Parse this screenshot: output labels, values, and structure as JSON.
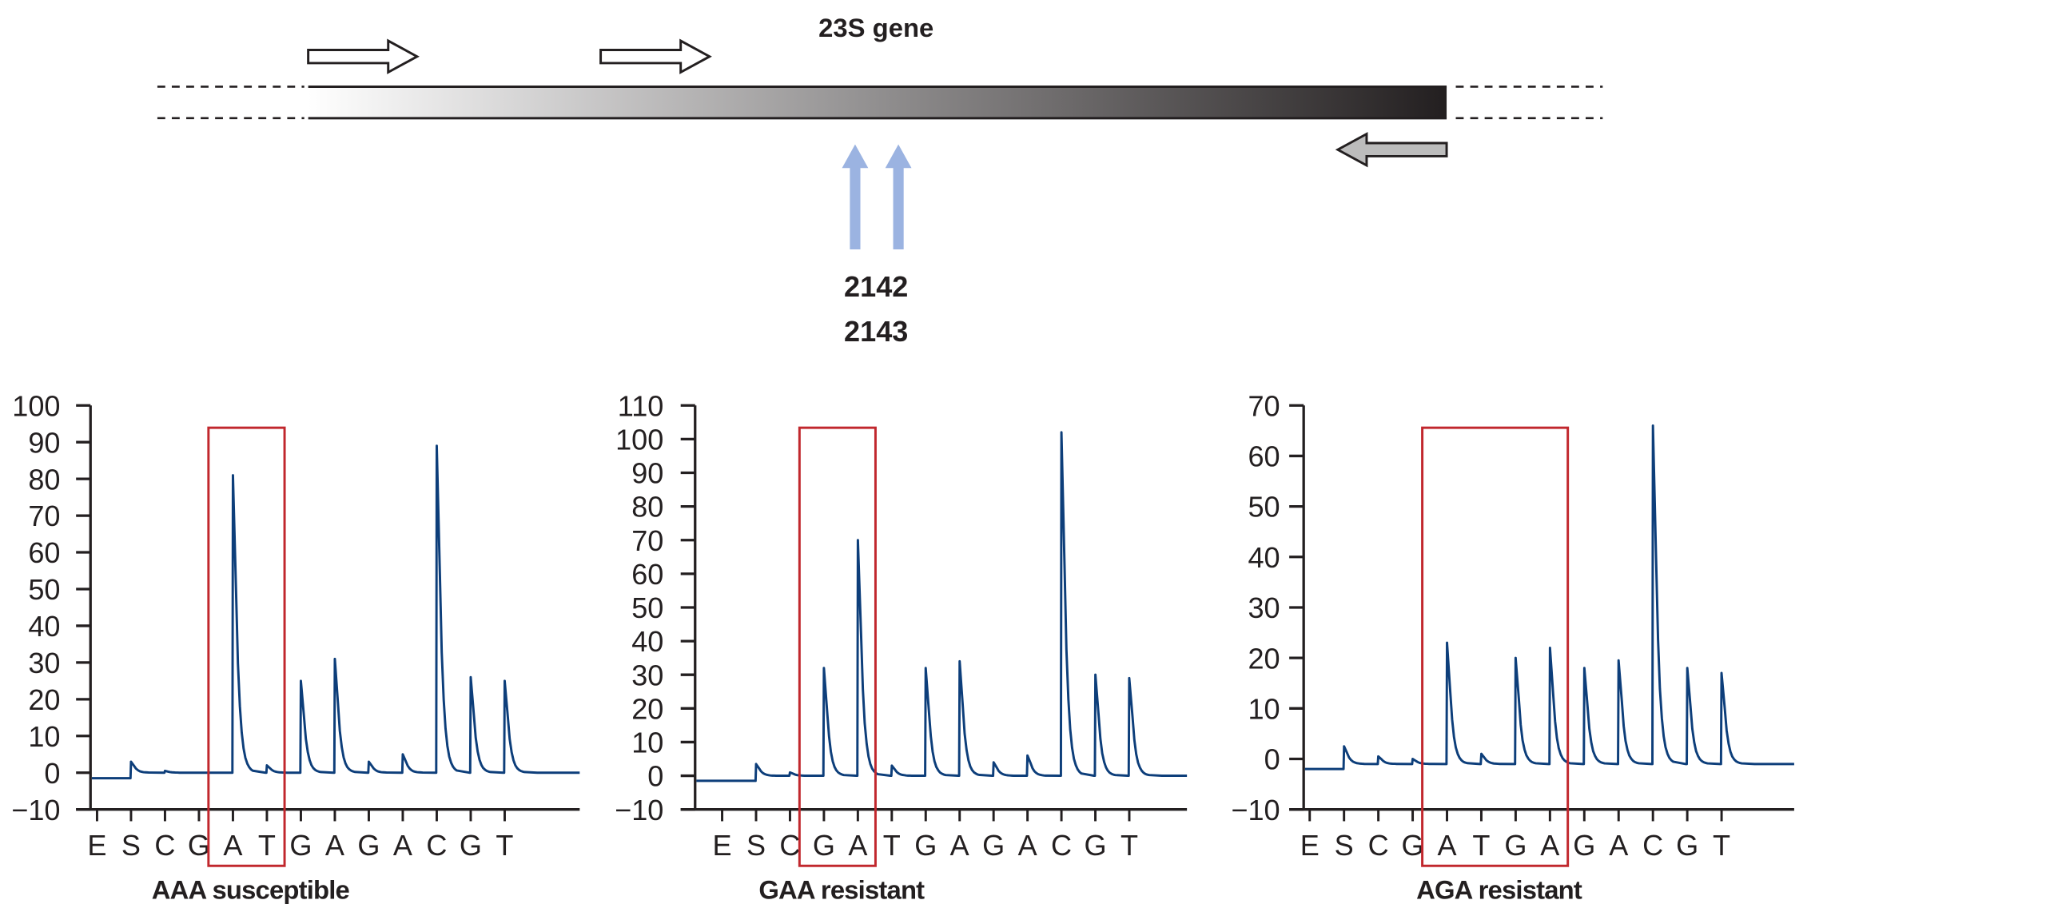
{
  "diagram": {
    "gene_label": "23S gene",
    "positions": [
      "2142",
      "2143"
    ],
    "colors": {
      "mutation_arrow": "#9bb3e1",
      "reverse_primer": "#bcbcbc",
      "gradient_start": "#ffffff",
      "gradient_end": "#231f20"
    }
  },
  "chart_data": [
    {
      "type": "line",
      "title": "AAA susceptible",
      "categories": [
        "E",
        "S",
        "C",
        "G",
        "A",
        "T",
        "G",
        "A",
        "G",
        "A",
        "C",
        "G",
        "T"
      ],
      "values": [
        0,
        3,
        0.5,
        0,
        81,
        2,
        25,
        31,
        3,
        5,
        89,
        26,
        25
      ],
      "baseline_before": -1.5,
      "baseline_after": 0,
      "ylim": [
        -10,
        100
      ],
      "yticks": [
        "−10",
        "0",
        "10",
        "20",
        "30",
        "40",
        "50",
        "60",
        "70",
        "80",
        "90",
        "100"
      ],
      "highlight": [
        4,
        5
      ],
      "line_color": "#0d3e7a",
      "highlight_color": "#c1272d"
    },
    {
      "type": "line",
      "title": "GAA resistant",
      "categories": [
        "E",
        "S",
        "C",
        "G",
        "A",
        "T",
        "G",
        "A",
        "G",
        "A",
        "C",
        "G",
        "T"
      ],
      "values": [
        0,
        3.5,
        1,
        32,
        70,
        3,
        32,
        34,
        4,
        6,
        102,
        30,
        29
      ],
      "baseline_before": -1.5,
      "baseline_after": 0,
      "ylim": [
        -10,
        110
      ],
      "yticks": [
        "−10",
        "0",
        "10",
        "20",
        "30",
        "40",
        "50",
        "60",
        "70",
        "80",
        "90",
        "100",
        "110"
      ],
      "highlight": [
        3,
        4
      ],
      "line_color": "#0d3e7a",
      "highlight_color": "#c1272d"
    },
    {
      "type": "line",
      "title": "AGA resistant",
      "categories": [
        "E",
        "S",
        "C",
        "G",
        "A",
        "T",
        "G",
        "A",
        "G",
        "A",
        "C",
        "G",
        "T"
      ],
      "values": [
        0,
        2.5,
        0.5,
        0,
        23,
        1,
        20,
        22,
        18,
        19.5,
        66,
        18,
        17
      ],
      "baseline_before": -2,
      "baseline_after": -1,
      "ylim": [
        -10,
        70
      ],
      "yticks": [
        "−10",
        "0",
        "10",
        "20",
        "30",
        "40",
        "50",
        "60",
        "70"
      ],
      "highlight": [
        4,
        7
      ],
      "line_color": "#0d3e7a",
      "highlight_color": "#c1272d"
    }
  ]
}
